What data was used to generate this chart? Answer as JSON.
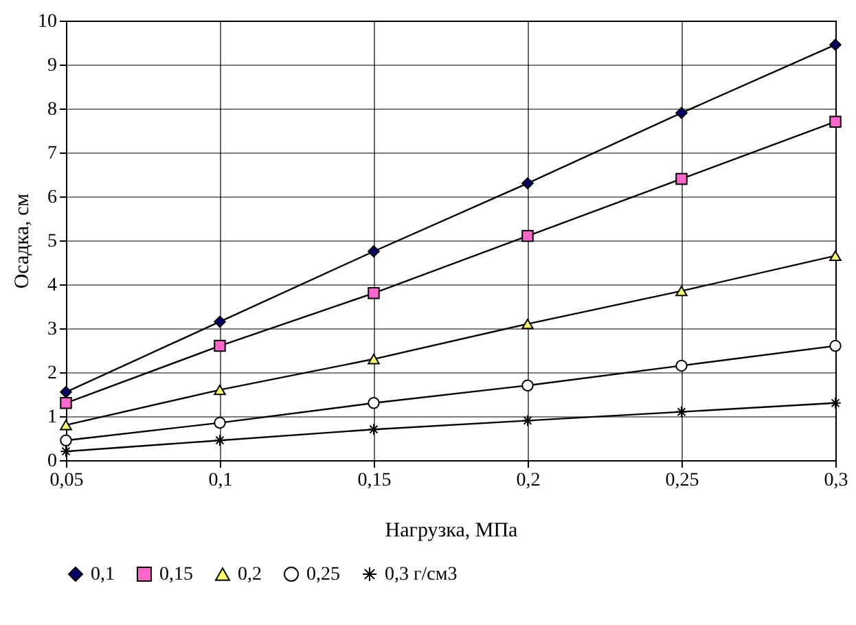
{
  "chart_data": {
    "type": "line",
    "xlabel": "Нагрузка, МПа",
    "ylabel": "Осадка, см",
    "x": [
      0.05,
      0.1,
      0.15,
      0.2,
      0.25,
      0.3
    ],
    "series": [
      {
        "name": "0,1",
        "color": "#000066",
        "marker": "diamond",
        "values": [
          1.55,
          3.15,
          4.75,
          6.3,
          7.9,
          9.45
        ]
      },
      {
        "name": "0,15",
        "color": "#ff66cc",
        "marker": "square",
        "values": [
          1.3,
          2.6,
          3.8,
          5.1,
          6.4,
          7.7
        ]
      },
      {
        "name": "0,2",
        "color": "#ffff66",
        "marker": "triangle",
        "values": [
          0.8,
          1.6,
          2.3,
          3.1,
          3.85,
          4.65
        ]
      },
      {
        "name": "0,25",
        "color": "#ffffff",
        "marker": "circle",
        "values": [
          0.45,
          0.85,
          1.3,
          1.7,
          2.15,
          2.6
        ]
      },
      {
        "name": "0,3 г/см3",
        "color": "#000000",
        "marker": "cross",
        "values": [
          0.2,
          0.45,
          0.7,
          0.9,
          1.1,
          1.3
        ]
      }
    ],
    "xlim": [
      0.05,
      0.3
    ],
    "xticks": [
      {
        "value": 0.05,
        "label": "0,05"
      },
      {
        "value": 0.1,
        "label": "0,1"
      },
      {
        "value": 0.15,
        "label": "0,15"
      },
      {
        "value": 0.2,
        "label": "0,2"
      },
      {
        "value": 0.25,
        "label": "0,25"
      },
      {
        "value": 0.3,
        "label": "0,3"
      }
    ],
    "ylim": [
      0,
      10
    ],
    "yticks": [
      0,
      1,
      2,
      3,
      4,
      5,
      6,
      7,
      8,
      9,
      10
    ],
    "grid": true,
    "legend": "bottom",
    "line_style": "solid"
  }
}
